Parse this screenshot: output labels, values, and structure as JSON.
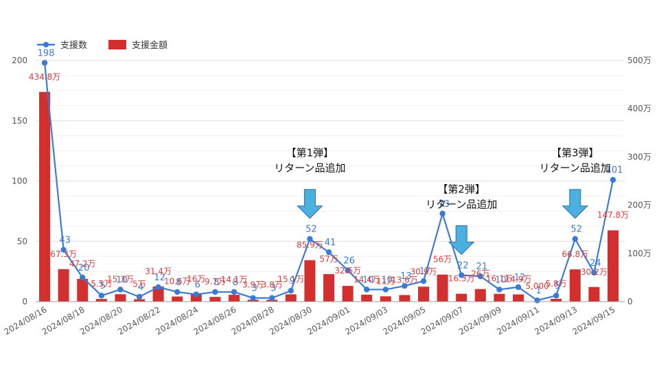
{
  "chart_data": {
    "type": "bar",
    "categories": [
      "2024/08/16",
      "2024/08/17",
      "2024/08/18",
      "2024/08/19",
      "2024/08/20",
      "2024/08/21",
      "2024/08/22",
      "2024/08/23",
      "2024/08/24",
      "2024/08/25",
      "2024/08/26",
      "2024/08/27",
      "2024/08/28",
      "2024/08/29",
      "2024/08/30",
      "2024/08/31",
      "2024/09/01",
      "2024/09/02",
      "2024/09/03",
      "2024/09/04",
      "2024/09/05",
      "2024/09/06",
      "2024/09/07",
      "2024/09/08",
      "2024/09/09",
      "2024/09/10",
      "2024/09/11",
      "2024/09/12",
      "2024/09/13",
      "2024/09/14",
      "2024/09/15"
    ],
    "x_tick_labels": [
      "2024/08/16",
      "2024/08/18",
      "2024/08/20",
      "2024/08/22",
      "2024/08/24",
      "2024/08/26",
      "2024/08/28",
      "2024/08/30",
      "2024/09/01",
      "2024/09/03",
      "2024/09/05",
      "2024/09/07",
      "2024/09/09",
      "2024/09/11",
      "2024/09/13",
      "2024/09/15"
    ],
    "series": [
      {
        "name": "支援数",
        "kind": "line",
        "axis": "left",
        "values": [
          198,
          43,
          20,
          5,
          10,
          4,
          12,
          8,
          6,
          8,
          8,
          3,
          3,
          9,
          52,
          41,
          26,
          10,
          10,
          13,
          17,
          73,
          22,
          21,
          10,
          12,
          1,
          5,
          52,
          24,
          101
        ],
        "labels": [
          "198",
          "43",
          "20",
          "5",
          "10",
          "4",
          "12",
          "8",
          "6",
          "8",
          "8",
          "3",
          "3",
          "9",
          "52",
          "41",
          "26",
          "10",
          "10",
          "13",
          "17",
          "73",
          "22",
          "21",
          "10",
          "12",
          "1",
          "5",
          "52",
          "24",
          "101"
        ]
      },
      {
        "name": "支援金額",
        "kind": "bar",
        "axis": "right",
        "values": [
          434.8,
          67.3,
          47.2,
          5.5,
          15.3,
          5.0,
          31.4,
          10.6,
          16.0,
          9.7,
          14.1,
          3.9,
          3.8,
          15.1,
          85.9,
          57.0,
          32.6,
          14.4,
          11.0,
          13.6,
          30.9,
          56.0,
          16.3,
          26.0,
          16.1,
          14.9,
          0.5,
          5.8,
          66.8,
          30.2,
          147.8
        ],
        "labels": [
          "434.8万",
          "67.3万",
          "47.2万",
          "5.5万",
          "15.3万",
          "5万",
          "31.4万",
          "10.6万",
          "16万",
          "9.7万",
          "14.1万",
          "3.9万",
          "3.8万",
          "15.1万",
          "85.9万",
          "57万",
          "32.6万",
          "14.4万",
          "11万",
          "13.6万",
          "30.9万",
          "56万",
          "16.3万",
          "26万",
          "16.1万",
          "14.9万",
          "5,000",
          "5.8万",
          "66.8万",
          "30.2万",
          "147.8万"
        ]
      }
    ],
    "y_left": {
      "ylim": [
        0,
        200
      ],
      "ticks": [
        "0",
        "50",
        "100",
        "150",
        "200"
      ]
    },
    "y_right": {
      "ylim": [
        0,
        500
      ],
      "ticks": [
        "0",
        "100万",
        "200万",
        "300万",
        "400万",
        "500万"
      ]
    },
    "legend_position": "top-left",
    "grid": true,
    "colors": {
      "line": "#3a7bd5",
      "bar": "#d32f2f",
      "arrow": "#4ab0e0",
      "grid": "#e6e6e6"
    },
    "annotations": [
      {
        "category": "2024/08/30",
        "line1": "【第1弾】",
        "line2": "リターン品追加"
      },
      {
        "category": "2024/09/07",
        "line1": "【第2弾】",
        "line2": "リターン品追加"
      },
      {
        "category": "2024/09/13",
        "line1": "【第3弾】",
        "line2": "リターン品追加"
      }
    ]
  }
}
